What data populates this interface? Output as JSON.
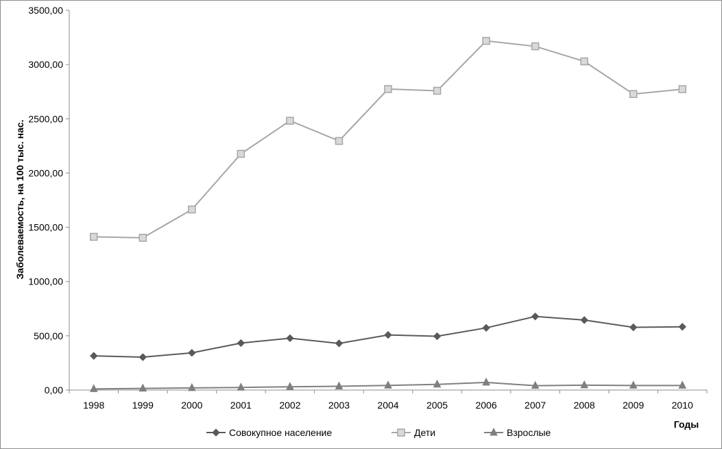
{
  "chart_data": {
    "type": "line",
    "xlabel": "Годы",
    "ylabel": "Заболеваемость, на 100 тыс. нас.",
    "ylim": [
      0,
      3500
    ],
    "yticks": [
      "0,00",
      "500,00",
      "1000,00",
      "1500,00",
      "2000,00",
      "2500,00",
      "3000,00",
      "3500,00"
    ],
    "categories": [
      "1998",
      "1999",
      "2000",
      "2001",
      "2002",
      "2003",
      "2004",
      "2005",
      "2006",
      "2007",
      "2008",
      "2009",
      "2010"
    ],
    "grid": false,
    "legend_position": "bottom",
    "series": [
      {
        "name": "Совокупное население",
        "marker": "diamond",
        "color": "#595959",
        "values": [
          315,
          303,
          343,
          433,
          478,
          430,
          508,
          496,
          573,
          678,
          645,
          578,
          583
        ]
      },
      {
        "name": "Дети",
        "marker": "square",
        "color": "#a6a6a6",
        "values": [
          1412,
          1403,
          1664,
          2177,
          2482,
          2296,
          2774,
          2758,
          3218,
          3168,
          3029,
          2728,
          2773
        ]
      },
      {
        "name": "Взрослые",
        "marker": "triangle",
        "color": "#7f7f7f",
        "values": [
          10,
          15,
          20,
          24,
          30,
          35,
          43,
          52,
          70,
          40,
          45,
          42,
          42
        ]
      }
    ]
  }
}
